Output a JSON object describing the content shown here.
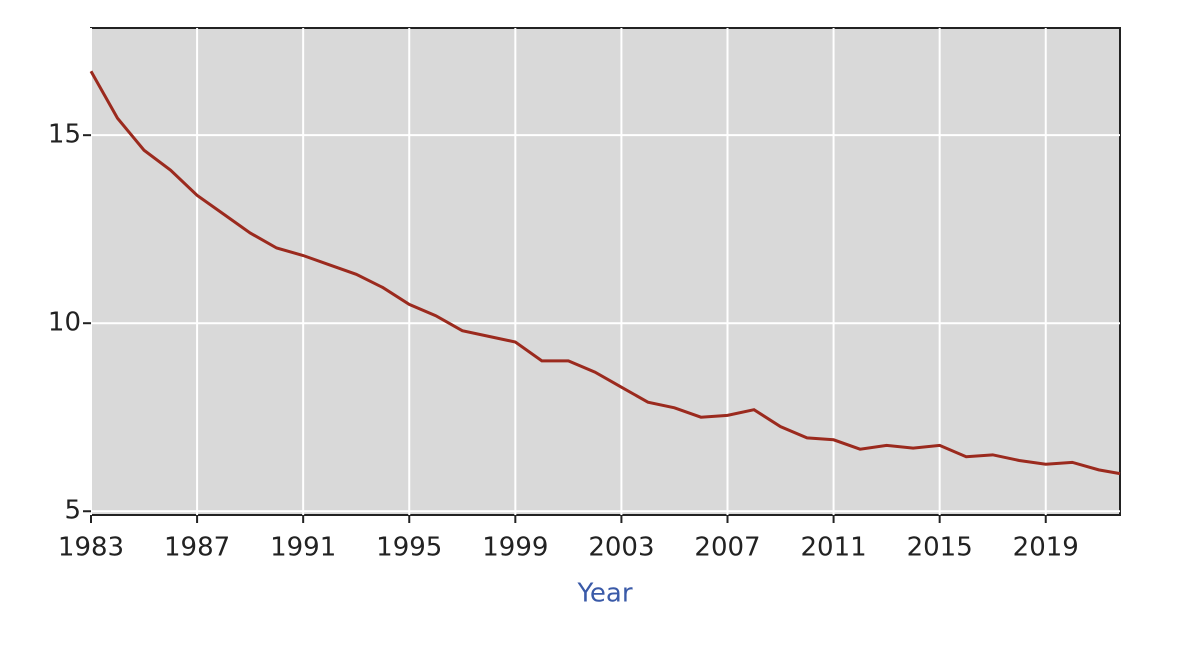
{
  "chart_data": {
    "type": "line",
    "x_label": "Year",
    "x": [
      1983,
      1984,
      1985,
      1986,
      1987,
      1988,
      1989,
      1990,
      1991,
      1992,
      1993,
      1994,
      1995,
      1996,
      1997,
      1998,
      1999,
      2000,
      2001,
      2002,
      2003,
      2004,
      2005,
      2006,
      2007,
      2008,
      2009,
      2010,
      2011,
      2012,
      2013,
      2014,
      2015,
      2016,
      2017,
      2018,
      2019,
      2020,
      2021,
      2021.8
    ],
    "series": [
      {
        "color": "#9b2a1e",
        "values": [
          16.7,
          15.45,
          14.6,
          14.07,
          13.4,
          12.9,
          12.4,
          12.0,
          11.8,
          11.55,
          11.3,
          10.95,
          10.5,
          10.2,
          9.8,
          9.65,
          9.5,
          9.0,
          9.0,
          8.7,
          8.3,
          7.9,
          7.75,
          7.5,
          7.55,
          7.7,
          7.25,
          6.95,
          6.9,
          6.65,
          6.75,
          6.68,
          6.75,
          6.45,
          6.5,
          6.35,
          6.25,
          6.3,
          6.1,
          6.0
        ]
      }
    ],
    "xlim": [
      1983,
      2021.8
    ],
    "xticks": [
      1983,
      1987,
      1991,
      1995,
      1999,
      2003,
      2007,
      2011,
      2015,
      2019
    ],
    "ylim": [
      4.9,
      17.85
    ],
    "yticks": [
      5,
      10,
      15
    ],
    "grid": true
  }
}
